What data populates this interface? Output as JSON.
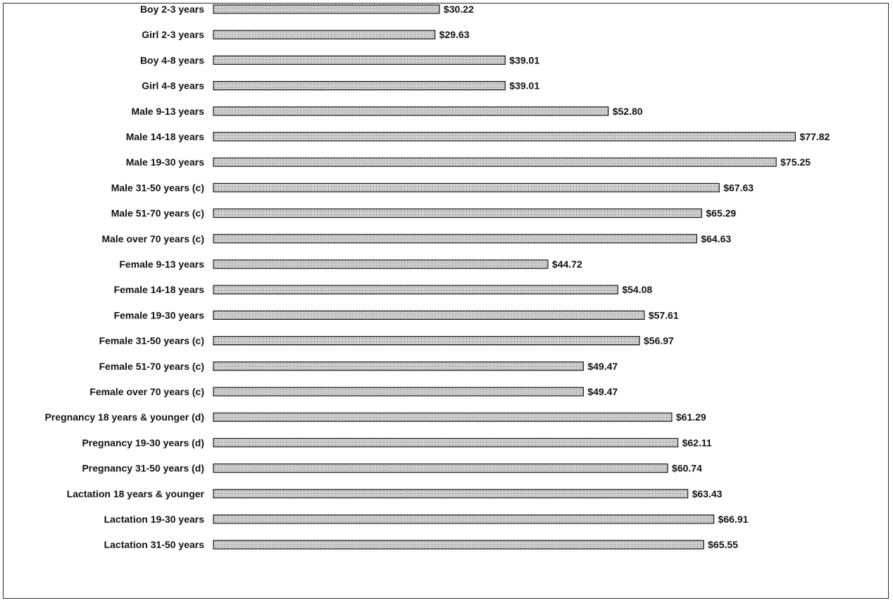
{
  "chart_data": {
    "type": "bar",
    "orientation": "horizontal",
    "title": "",
    "xlabel": "",
    "ylabel": "",
    "grid": false,
    "legend": "none",
    "value_prefix": "$",
    "categories": [
      "Boy 2-3 years",
      "Girl 2-3 years",
      "Boy 4-8 years",
      "Girl 4-8 years",
      "Male 9-13 years",
      "Male 14-18 years",
      "Male 19-30 years",
      "Male 31-50 years (c)",
      "Male 51-70 years (c)",
      "Male over 70 years (c)",
      "Female 9-13 years",
      "Female 14-18 years",
      "Female 19-30 years",
      "Female 31-50 years (c)",
      "Female 51-70 years (c)",
      "Female over 70 years (c)",
      "Pregnancy 18 years & younger (d)",
      "Pregnancy 19-30 years (d)",
      "Pregnancy 31-50 years (d)",
      "Lactation 18 years & younger",
      "Lactation 19-30 years",
      "Lactation 31-50 years"
    ],
    "values": [
      30.22,
      29.63,
      39.01,
      39.01,
      52.8,
      77.82,
      75.25,
      67.63,
      65.29,
      64.63,
      44.72,
      54.08,
      57.61,
      56.97,
      49.47,
      49.47,
      61.29,
      62.11,
      60.74,
      63.43,
      66.91,
      65.55
    ],
    "value_labels": [
      "$30.22",
      "$29.63",
      "$39.01",
      "$39.01",
      "$52.80",
      "$77.82",
      "$75.25",
      "$67.63",
      "$65.29",
      "$64.63",
      "$44.72",
      "$54.08",
      "$57.61",
      "$56.97",
      "$49.47",
      "$49.47",
      "$61.29",
      "$62.11",
      "$60.74",
      "$63.43",
      "$66.91",
      "$65.55"
    ],
    "bar_color": "#c8c8c8",
    "bar_stroke": "#1a1a1a"
  }
}
